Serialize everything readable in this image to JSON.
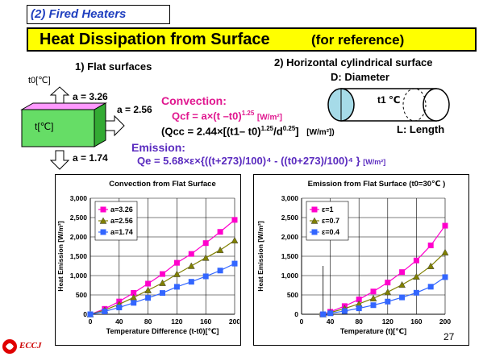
{
  "section_tag": "(2) Fired Heaters",
  "title": {
    "main": "Heat Dissipation from Surface",
    "note": "(for reference)"
  },
  "flat": {
    "heading": "1) Flat surfaces",
    "t0_label": "t0[℃]",
    "t_label": "t[℃]",
    "a_top": "a = 3.26",
    "a_side": "a = 2.56",
    "a_bottom": "a = 1.74"
  },
  "cyl": {
    "heading": "2) Horizontal cylindrical surface",
    "diameter": "D: Diameter",
    "t1": "t1 ℃",
    "length": "L: Length"
  },
  "formulas": {
    "convection_label": "Convection:",
    "qcf": "Qcf = a×(t –t0)",
    "qcf_exp": "1.25",
    "qcf_unit": "[W/m²]",
    "qcc": "(Qcc = 2.44×[(t1– t0)",
    "qcc_exp": "1.25",
    "qcc_div": "/d",
    "qcc_div_exp": "0.25",
    "qcc_close": "]",
    "qcc_unit": "[W/m²])",
    "emission_label": "Emission:",
    "qe": "Qe = 5.68×ε×{((t+273)/100)⁴ - ((t0+273)/100)⁴ }",
    "qe_unit": "[W/m²]"
  },
  "chart_data": [
    {
      "type": "line",
      "title": "Convection from Flat Surface",
      "xlabel": "Temperature Difference (t-t0)[℃]",
      "ylabel": "Heat Emission [W/m²]",
      "xlim": [
        0,
        200
      ],
      "ylim": [
        0,
        3000
      ],
      "xticks": [
        0,
        40,
        80,
        120,
        160,
        200
      ],
      "yticks": [
        0,
        500,
        1000,
        1500,
        2000,
        2500,
        3000
      ],
      "ytick_labels": [
        "0",
        "500",
        "1,000",
        "1,500",
        "2,000",
        "2,500",
        "3,000"
      ],
      "legend_position": "top-left",
      "grid": true,
      "series": [
        {
          "name": "a=3.26",
          "color": "#ff00cc",
          "marker": "square",
          "x": [
            0,
            20,
            40,
            60,
            80,
            100,
            120,
            140,
            160,
            180,
            200
          ],
          "y": [
            0,
            139,
            330,
            553,
            792,
            1040,
            1330,
            1560,
            1840,
            2130,
            2440
          ]
        },
        {
          "name": "a=2.56",
          "color": "#808000",
          "marker": "triangle",
          "x": [
            0,
            20,
            40,
            60,
            80,
            100,
            120,
            140,
            160,
            180,
            200
          ],
          "y": [
            0,
            109,
            259,
            434,
            622,
            810,
            1040,
            1250,
            1460,
            1660,
            1910
          ]
        },
        {
          "name": "a=1.74",
          "color": "#3366ff",
          "marker": "square",
          "x": [
            0,
            20,
            40,
            60,
            80,
            100,
            120,
            140,
            160,
            180,
            200
          ],
          "y": [
            0,
            74,
            176,
            295,
            423,
            550,
            710,
            840,
            980,
            1130,
            1310
          ]
        }
      ]
    },
    {
      "type": "line",
      "title": "Emission from Flat Surface",
      "title_note": "(t0=30℃ )",
      "xlabel": "Temperature (t)[℃]",
      "ylabel": "Heat Emission [W/m²]",
      "xlim": [
        0,
        200
      ],
      "ylim": [
        0,
        3000
      ],
      "xticks": [
        0,
        30,
        40,
        80,
        120,
        160,
        200
      ],
      "yticks": [
        0,
        500,
        1000,
        1500,
        2000,
        2500,
        3000
      ],
      "ytick_labels": [
        "0",
        "500",
        "1,000",
        "1,500",
        "2,000",
        "2,500",
        "3,000"
      ],
      "legend_position": "top-left",
      "grid": true,
      "series": [
        {
          "name": "ε=1",
          "color": "#ff00cc",
          "marker": "square",
          "x": [
            30,
            40,
            60,
            80,
            100,
            120,
            140,
            160,
            180,
            200
          ],
          "y": [
            0,
            63,
            211,
            384,
            588,
            820,
            1090,
            1390,
            1780,
            2290
          ]
        },
        {
          "name": "ε=0.7",
          "color": "#808000",
          "marker": "triangle",
          "x": [
            30,
            40,
            60,
            80,
            100,
            120,
            140,
            160,
            180,
            200
          ],
          "y": [
            0,
            44,
            148,
            269,
            412,
            574,
            763,
            973,
            1246,
            1600
          ]
        },
        {
          "name": "ε=0.4",
          "color": "#3366ff",
          "marker": "square",
          "x": [
            30,
            40,
            60,
            80,
            100,
            120,
            140,
            160,
            180,
            200
          ],
          "y": [
            0,
            25,
            84,
            154,
            235,
            328,
            436,
            556,
            712,
            960
          ]
        }
      ]
    }
  ],
  "footer": {
    "logo_text": "ECCJ",
    "page_number": "27"
  }
}
